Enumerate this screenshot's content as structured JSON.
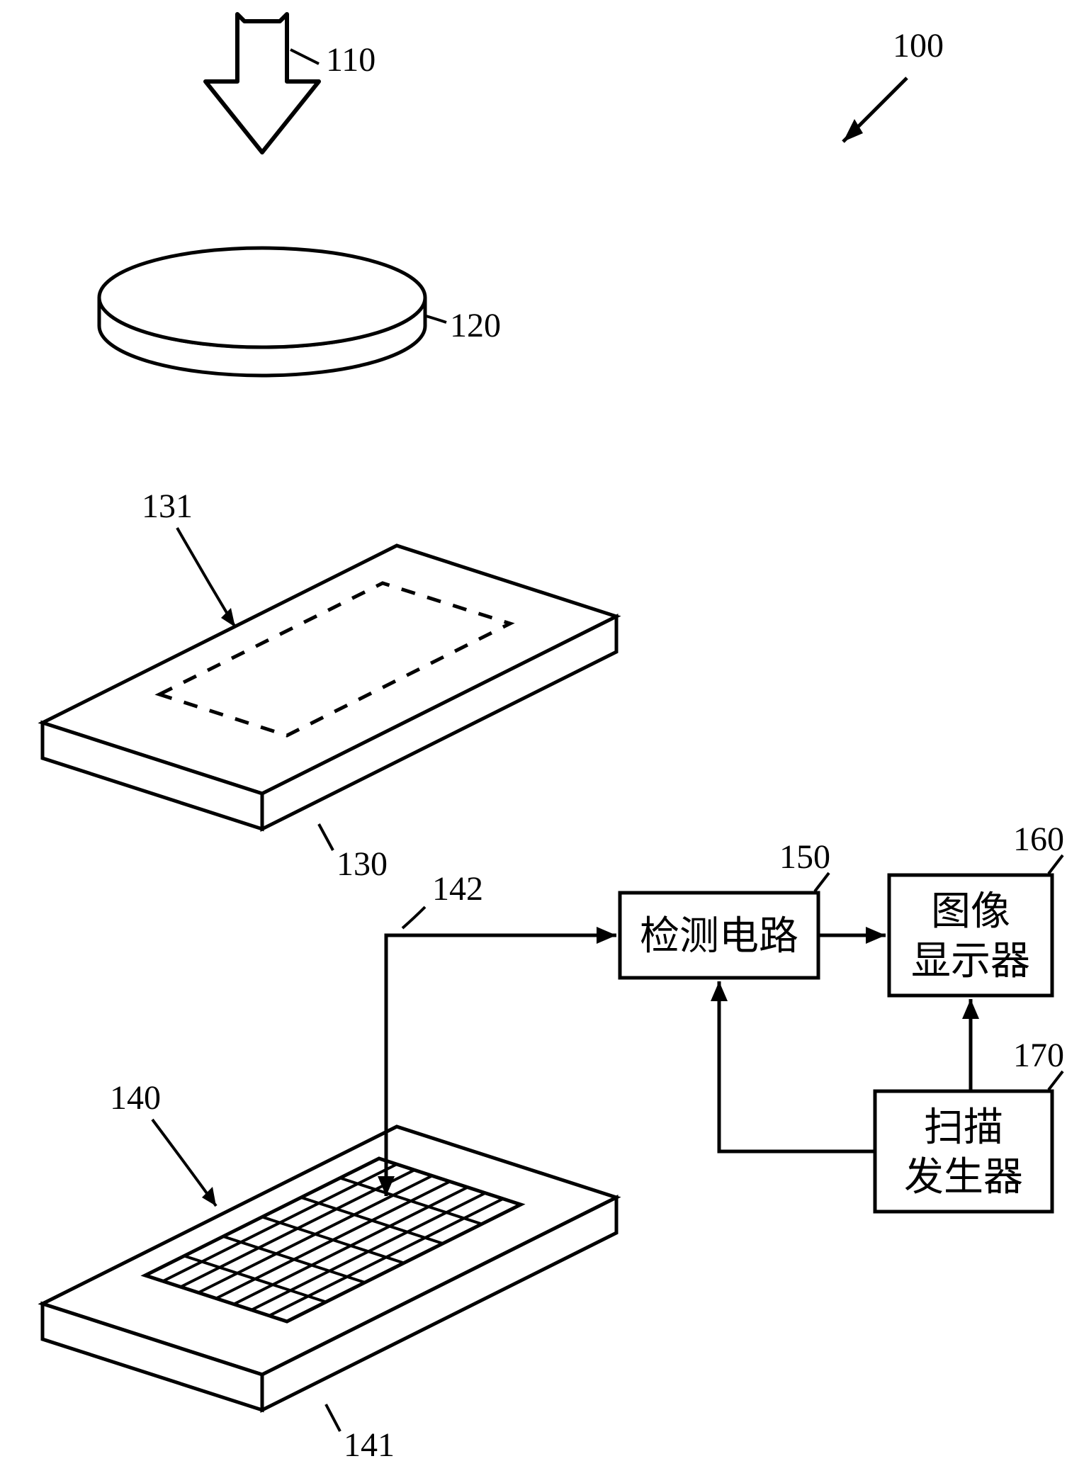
{
  "figure": {
    "type": "flowchart",
    "background_color": "#ffffff",
    "stroke_color": "#000000",
    "stroke_width_main": 5,
    "stroke_width_thin": 4,
    "dash_pattern": "18 18",
    "label_fontsize": 48,
    "cjk_fontsize": 56,
    "labels": {
      "system": "100",
      "arrow_in": "110",
      "disk": "120",
      "plate_region": "131",
      "plate": "130",
      "grid": "140",
      "grid_base": "141",
      "signal_line": "142",
      "detect_box": "150",
      "display_box": "160",
      "scan_box": "170"
    },
    "blocks": {
      "detect": {
        "line1": "检测电路"
      },
      "display": {
        "line1": "图像",
        "line2": "显示器"
      },
      "scan": {
        "line1": "扫描",
        "line2": "发生器"
      }
    },
    "grid_cells": {
      "cols": 8,
      "rows": 6
    },
    "arrow_head": {
      "len": 26,
      "half": 12
    }
  }
}
